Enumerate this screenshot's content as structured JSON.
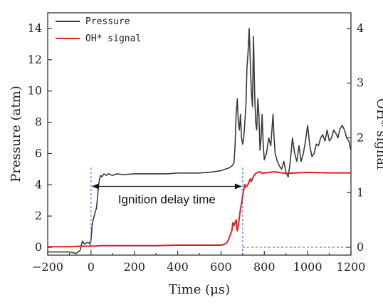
{
  "chart_data": {
    "type": "line",
    "xlabel": "Time (μs)",
    "ylabel_left": "Pressure (atm)",
    "ylabel_right": "OH* signal",
    "xlim": [
      -200,
      1200
    ],
    "ylim_left": [
      -0.5,
      15
    ],
    "ylim_right": [
      -0.143,
      4.286
    ],
    "xticks": [
      -200,
      0,
      200,
      400,
      600,
      800,
      1000,
      1200
    ],
    "xtick_labels": [
      "−200",
      "0",
      "200",
      "400",
      "600",
      "800",
      "1000",
      "1200"
    ],
    "yticks_left": [
      0,
      2,
      4,
      6,
      8,
      10,
      12,
      14
    ],
    "yticks_right": [
      0,
      1,
      2,
      3,
      4
    ],
    "legend": {
      "position": "top-left",
      "entries": [
        "Pressure",
        "OH* signal"
      ]
    },
    "annotation": {
      "text": "Ignition delay time",
      "x_start": 0,
      "x_end": 700
    },
    "series": [
      {
        "name": "Pressure",
        "color": "#3a3a3a",
        "axis": "left",
        "x": [
          -200,
          -150,
          -100,
          -80,
          -70,
          -60,
          -50,
          -40,
          -30,
          -20,
          -10,
          -5,
          0,
          5,
          10,
          15,
          20,
          25,
          30,
          35,
          40,
          45,
          50,
          55,
          60,
          70,
          80,
          100,
          120,
          150,
          200,
          250,
          300,
          350,
          400,
          450,
          500,
          550,
          600,
          620,
          640,
          650,
          660,
          665,
          670,
          675,
          680,
          685,
          690,
          695,
          700,
          705,
          710,
          715,
          720,
          725,
          730,
          735,
          740,
          745,
          750,
          755,
          760,
          765,
          770,
          775,
          780,
          785,
          790,
          795,
          800,
          810,
          820,
          830,
          840,
          845,
          850,
          860,
          870,
          880,
          890,
          900,
          910,
          920,
          930,
          940,
          950,
          960,
          970,
          980,
          990,
          1000,
          1010,
          1020,
          1030,
          1040,
          1050,
          1060,
          1070,
          1080,
          1090,
          1100,
          1110,
          1120,
          1130,
          1140,
          1150,
          1160,
          1170,
          1180,
          1190,
          1200
        ],
        "y": [
          -0.3,
          -0.3,
          -0.3,
          -0.35,
          -0.4,
          -0.3,
          -0.2,
          0.4,
          0.2,
          0.3,
          0.3,
          0.2,
          0.5,
          1.4,
          1.8,
          2.0,
          2.3,
          2.5,
          3.2,
          4.0,
          4.4,
          4.6,
          4.5,
          4.6,
          4.7,
          4.6,
          4.7,
          4.6,
          4.7,
          4.65,
          4.7,
          4.7,
          4.7,
          4.7,
          4.75,
          4.75,
          4.75,
          4.8,
          4.9,
          5.0,
          5.1,
          5.2,
          5.4,
          6.5,
          8.5,
          9.5,
          8.0,
          7.5,
          8.5,
          7.0,
          6.6,
          7.0,
          8.0,
          9.0,
          11.5,
          12.5,
          14.0,
          12.0,
          10.0,
          9.0,
          13.5,
          10.0,
          8.0,
          7.5,
          9.5,
          8.5,
          6.2,
          7.0,
          8.5,
          6.5,
          5.6,
          6.0,
          7.0,
          6.5,
          8.5,
          7.0,
          6.0,
          5.5,
          5.2,
          5.0,
          5.5,
          4.8,
          4.5,
          5.5,
          7.0,
          6.0,
          5.5,
          6.5,
          5.5,
          6.0,
          6.8,
          7.8,
          6.5,
          5.8,
          6.0,
          6.6,
          6.5,
          7.0,
          7.2,
          6.8,
          7.5,
          6.8,
          7.0,
          7.5,
          7.3,
          7.0,
          7.6,
          7.8,
          7.5,
          7.0,
          6.8,
          6.2
        ]
      },
      {
        "name": "OH* signal",
        "color": "#e02020",
        "axis": "right",
        "x": [
          -200,
          -100,
          -50,
          0,
          50,
          100,
          200,
          300,
          400,
          450,
          500,
          550,
          600,
          620,
          630,
          640,
          650,
          655,
          660,
          665,
          670,
          675,
          680,
          685,
          690,
          695,
          700,
          705,
          710,
          715,
          720,
          725,
          730,
          735,
          740,
          750,
          760,
          770,
          780,
          790,
          800,
          850,
          900,
          1000,
          1100,
          1200
        ],
        "y": [
          0.01,
          0.01,
          0.02,
          0.02,
          0.03,
          0.03,
          0.03,
          0.03,
          0.04,
          0.04,
          0.04,
          0.04,
          0.04,
          0.06,
          0.1,
          0.2,
          0.3,
          0.45,
          0.4,
          0.45,
          0.5,
          0.3,
          0.4,
          0.55,
          0.7,
          0.8,
          0.95,
          1.05,
          1.15,
          1.1,
          1.12,
          1.15,
          1.2,
          1.25,
          1.2,
          1.3,
          1.35,
          1.37,
          1.38,
          1.35,
          1.36,
          1.38,
          1.35,
          1.37,
          1.36,
          1.36
        ]
      }
    ]
  }
}
